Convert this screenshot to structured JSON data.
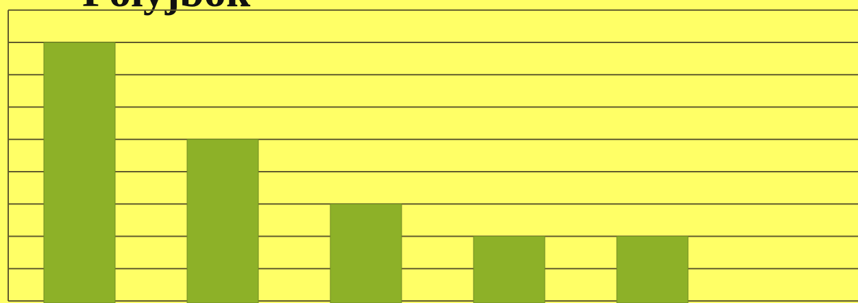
{
  "chart_data": {
    "type": "bar",
    "title": "Polyjbok",
    "categories": [
      "",
      "",
      "",
      "",
      ""
    ],
    "values": [
      8,
      5,
      3,
      2,
      2
    ],
    "ylim": [
      0,
      8
    ],
    "grid": true,
    "colors": {
      "background": "#ffff66",
      "bar": "#8db128",
      "bar_edge": "#6f8b22",
      "grid": "#5f5a2c"
    }
  }
}
